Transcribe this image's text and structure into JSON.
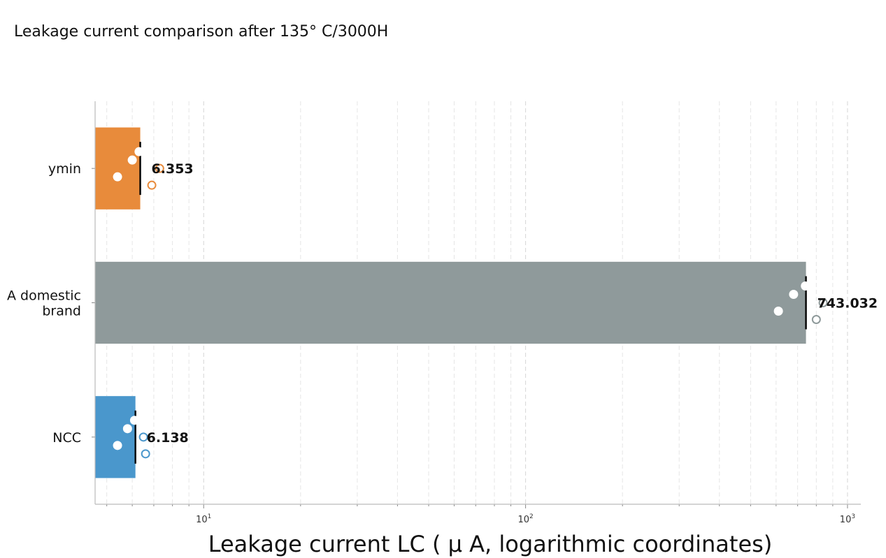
{
  "chart_data": {
    "type": "bar",
    "orientation": "horizontal",
    "title": "Leakage current comparison after 135° C/3000H",
    "xlabel": "Leakage current LC ( μ A, logarithmic coordinates)",
    "ylabel": "",
    "x_scale": "log",
    "xlim": [
      4.6,
      1100
    ],
    "grid": "vertical-dashed",
    "categories": [
      "ymin",
      "A domestic brand",
      "NCC"
    ],
    "category_lines": [
      [
        "ymin"
      ],
      [
        "A domestic",
        "brand"
      ],
      [
        "NCC"
      ]
    ],
    "values": [
      6.353,
      743.032,
      6.138
    ],
    "value_labels": [
      "6.353",
      "743.032",
      "6.138"
    ],
    "colors": [
      "#E88B3B",
      "#8F9A9B",
      "#4A97CC"
    ],
    "points": [
      [
        5.4,
        6.0,
        6.3,
        6.9,
        7.3
      ],
      [
        610,
        680,
        740,
        800,
        840
      ],
      [
        5.4,
        5.8,
        6.1,
        6.6,
        6.5
      ]
    ],
    "x_ticks": [
      {
        "base": "10",
        "exp": "1",
        "value": 10
      },
      {
        "base": "10",
        "exp": "2",
        "value": 100
      },
      {
        "base": "10",
        "exp": "3",
        "value": 1000
      }
    ]
  }
}
